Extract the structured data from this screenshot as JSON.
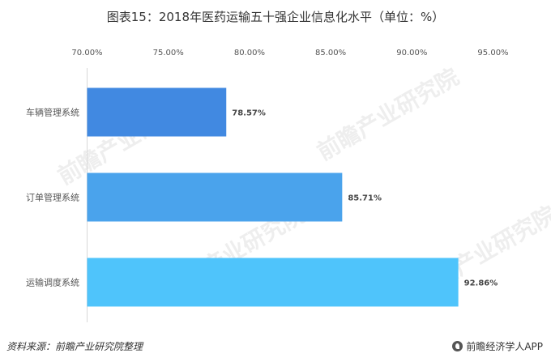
{
  "title": "图表15：2018年医药运输五十强企业信息化水平（单位：%）",
  "chart_data": {
    "type": "bar",
    "orientation": "horizontal",
    "categories": [
      "车辆管理系统",
      "订单管理系统",
      "运输调度系统"
    ],
    "values": [
      78.57,
      85.71,
      92.86
    ],
    "value_labels": [
      "78.57%",
      "85.71%",
      "92.86%"
    ],
    "xlim": [
      70,
      95
    ],
    "x_ticks": [
      "70.00%",
      "75.00%",
      "80.00%",
      "85.00%",
      "90.00%",
      "95.00%"
    ],
    "tick_values": [
      70,
      75,
      80,
      85,
      90,
      95
    ],
    "axis_position": "top",
    "grid": false,
    "bar_colors": [
      "#4189e1",
      "#4aa3ec",
      "#4fc4fb"
    ]
  },
  "footer": {
    "source": "资料来源：前瞻产业研究院整理",
    "brand": "前瞻经济学人APP"
  },
  "watermark": "前瞻产业研究院",
  "icons": {
    "brand": "qianzhan-logo-icon"
  }
}
